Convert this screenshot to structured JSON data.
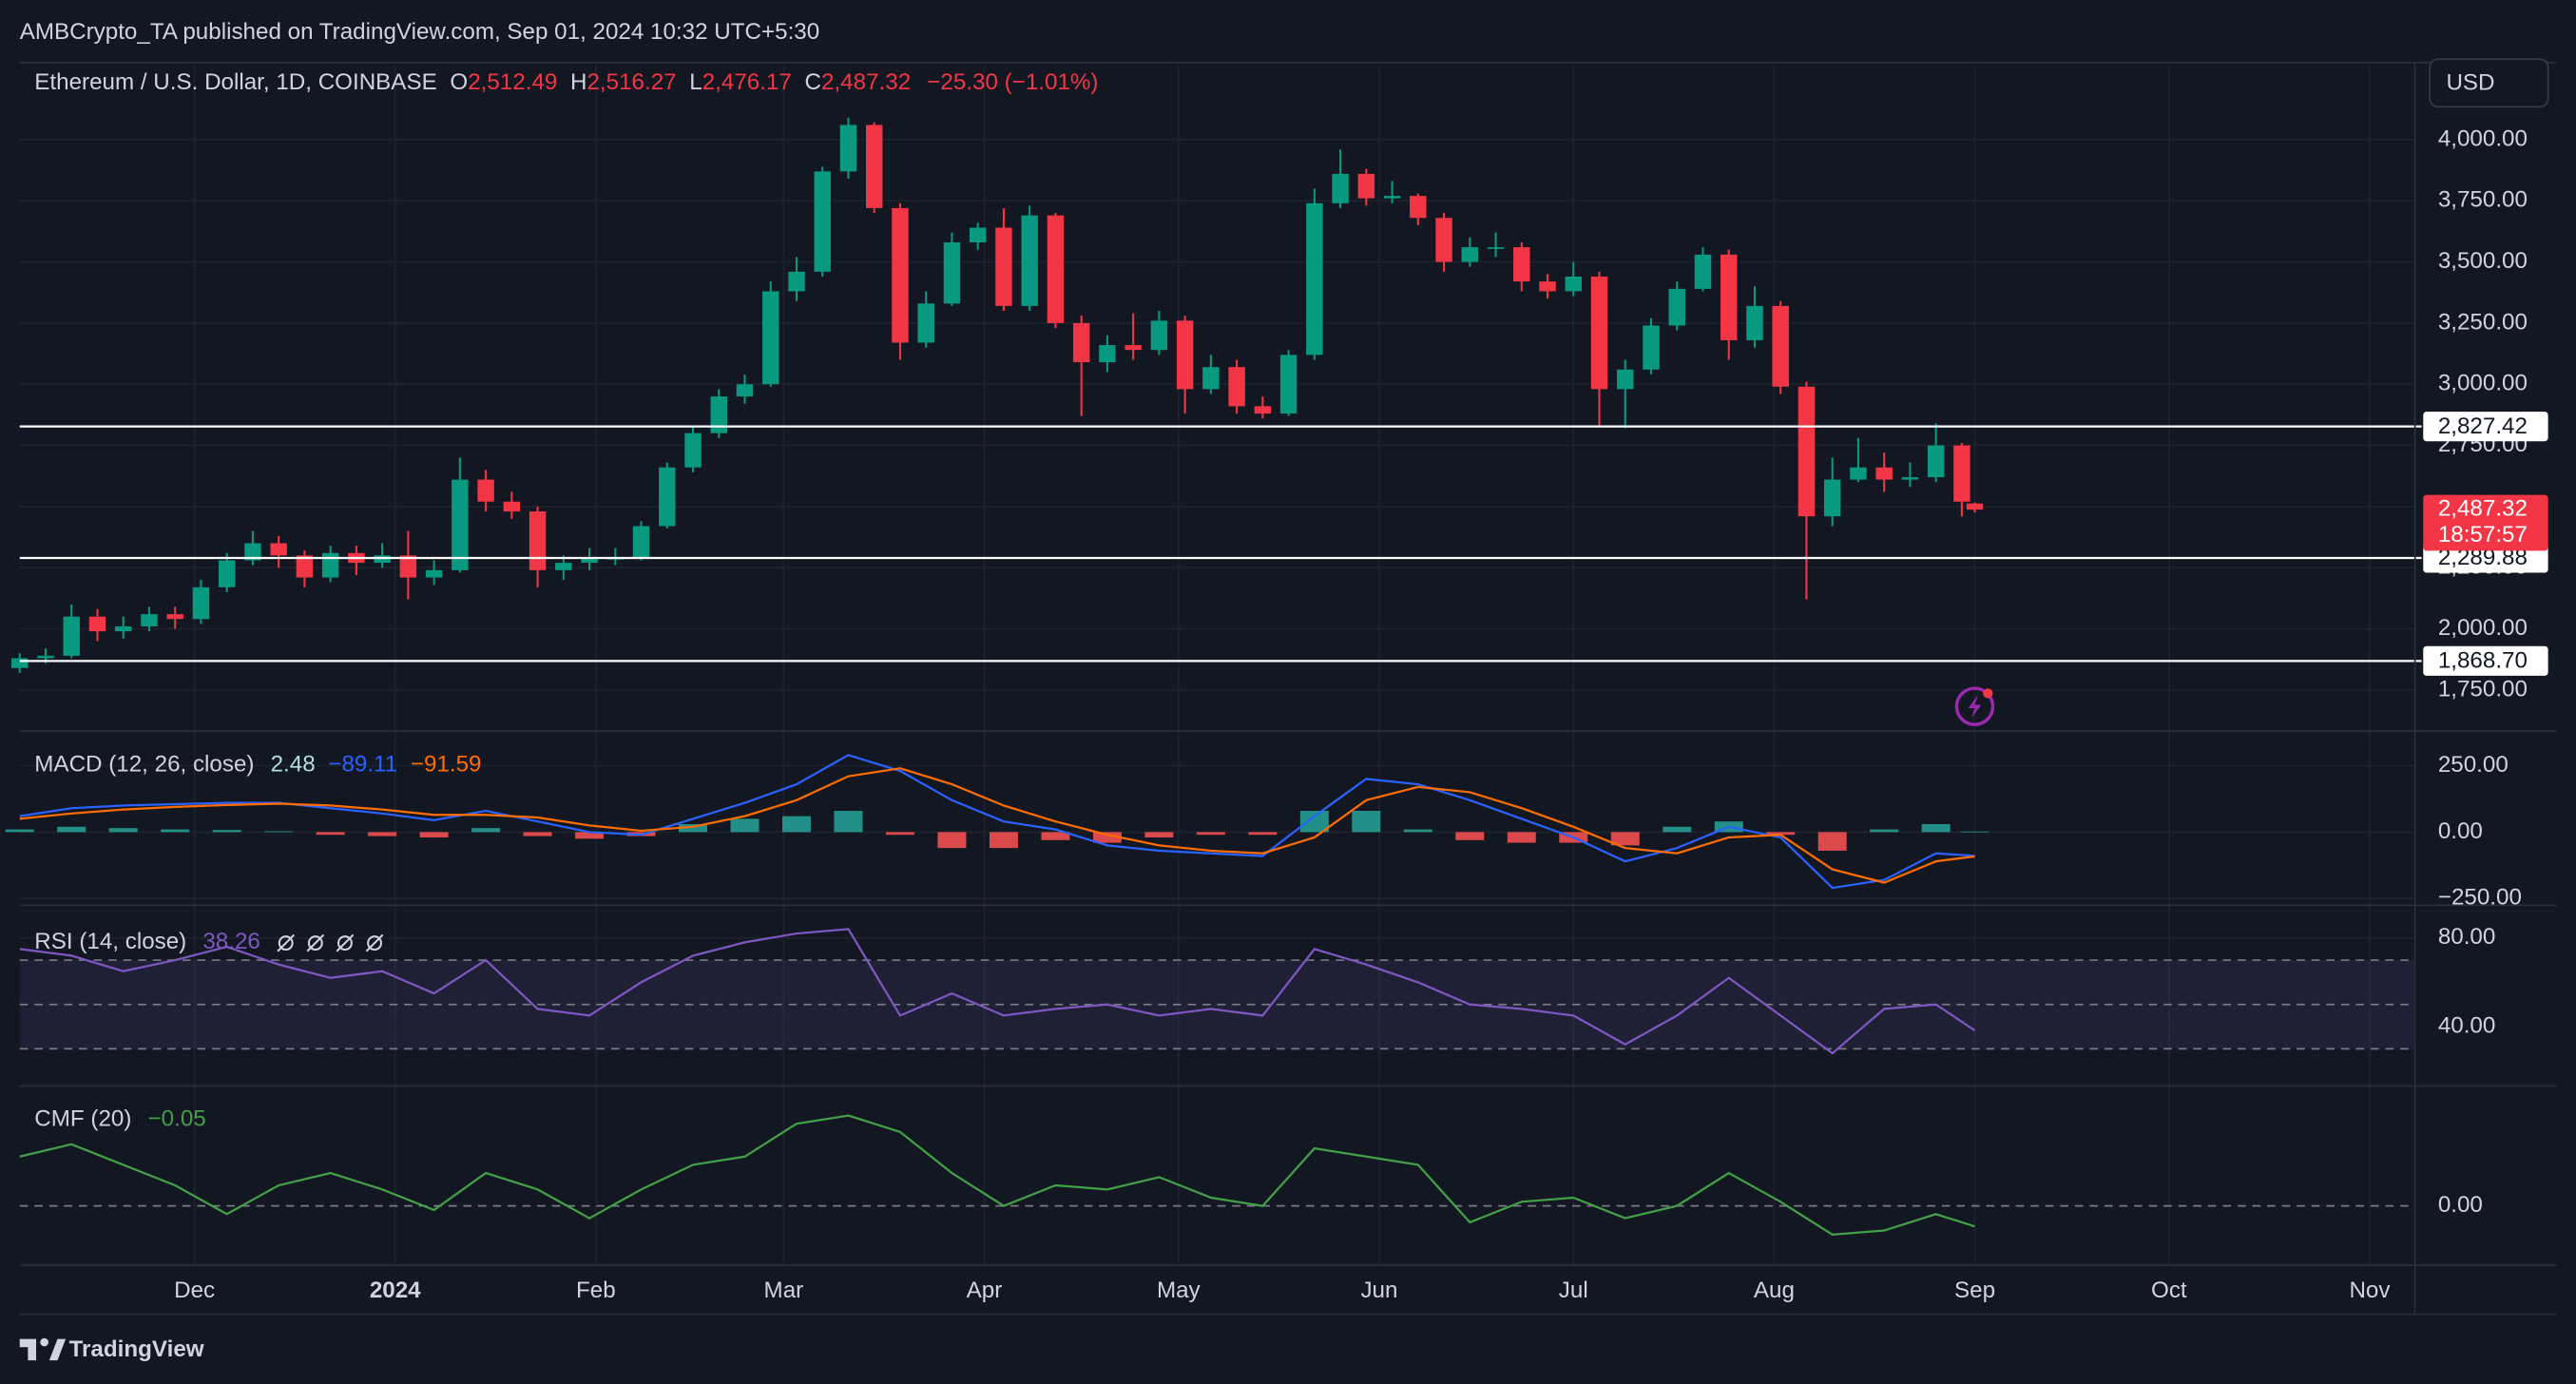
{
  "header": {
    "text": "AMBCrypto_TA published on TradingView.com, Sep 01, 2024 10:32 UTC+5:30",
    "currency": "USD"
  },
  "footer": {
    "brand": "TradingView"
  },
  "chart_data": [
    {
      "type": "candlestick",
      "legend": {
        "symbol": "Ethereum / U.S. Dollar, 1D, COINBASE",
        "items": [
          {
            "key": "O",
            "label": "2,512.49"
          },
          {
            "key": "H",
            "label": "2,516.27"
          },
          {
            "key": "L",
            "label": "2,476.17"
          },
          {
            "key": "C",
            "label": "2,487.32"
          }
        ],
        "change": "−25.30 (−1.01%)"
      },
      "countdown": "18:57:57",
      "up_color": "#089981",
      "down_color": "#f23645",
      "xlim": [
        0,
        370
      ],
      "xticks": [
        {
          "value": 27,
          "label": "Dec"
        },
        {
          "value": 58,
          "label": "2024"
        },
        {
          "value": 89,
          "label": "Feb"
        },
        {
          "value": 118,
          "label": "Mar"
        },
        {
          "value": 149,
          "label": "Apr"
        },
        {
          "value": 179,
          "label": "May"
        },
        {
          "value": 210,
          "label": "Jun"
        },
        {
          "value": 240,
          "label": "Jul"
        },
        {
          "value": 271,
          "label": "Aug"
        },
        {
          "value": 302,
          "label": "Sep"
        },
        {
          "value": 332,
          "label": "Oct"
        },
        {
          "value": 363,
          "label": "Nov"
        }
      ],
      "ylim": [
        1582,
        4302
      ],
      "yticks": [
        {
          "value": 1750,
          "label": "1,750.00"
        },
        {
          "value": 2000,
          "label": "2,000.00"
        },
        {
          "value": 2250,
          "label": "2,250.00"
        },
        {
          "value": 2500,
          "label": "2,500.00"
        },
        {
          "value": 2750,
          "label": "2,750.00"
        },
        {
          "value": 3000,
          "label": "3,000.00"
        },
        {
          "value": 3250,
          "label": "3,250.00"
        },
        {
          "value": 3500,
          "label": "3,500.00"
        },
        {
          "value": 3750,
          "label": "3,750.00"
        },
        {
          "value": 4000,
          "label": "4,000.00"
        }
      ],
      "grid": true,
      "levels": [
        {
          "value": 2827.42,
          "label": "2,827.42"
        },
        {
          "value": 2289.88,
          "label": "2,289.88"
        },
        {
          "value": 1868.7,
          "label": "1,868.70"
        }
      ],
      "x": [
        0,
        4,
        8,
        12,
        16,
        20,
        24,
        28,
        32,
        36,
        40,
        44,
        48,
        52,
        56,
        60,
        64,
        68,
        72,
        76,
        80,
        84,
        88,
        92,
        96,
        100,
        104,
        108,
        112,
        116,
        120,
        124,
        128,
        132,
        136,
        140,
        144,
        148,
        152,
        156,
        160,
        164,
        168,
        172,
        176,
        180,
        184,
        188,
        192,
        196,
        200,
        204,
        208,
        212,
        216,
        220,
        224,
        228,
        232,
        236,
        240,
        244,
        248,
        252,
        256,
        260,
        264,
        268,
        272,
        276,
        280,
        284,
        288,
        292,
        296,
        300,
        302
      ],
      "open": [
        1840,
        1880,
        1890,
        2050,
        1990,
        2010,
        2060,
        2040,
        2170,
        2280,
        2350,
        2300,
        2210,
        2310,
        2270,
        2300,
        2210,
        2240,
        2610,
        2520,
        2480,
        2240,
        2270,
        2290,
        2290,
        2420,
        2660,
        2800,
        2950,
        3000,
        3380,
        3460,
        3870,
        4060,
        3720,
        3170,
        3330,
        3580,
        3640,
        3320,
        3690,
        3250,
        3090,
        3160,
        3140,
        3260,
        2980,
        3070,
        2910,
        2880,
        3120,
        3740,
        3860,
        3760,
        3770,
        3680,
        3500,
        3560,
        3560,
        3420,
        3380,
        3440,
        2980,
        3060,
        3240,
        3390,
        3530,
        3180,
        3320,
        2990,
        2460,
        2610,
        2660,
        2610,
        2620,
        2750,
        2512.49
      ],
      "high": [
        1900,
        1920,
        2100,
        2080,
        2050,
        2090,
        2090,
        2200,
        2310,
        2400,
        2380,
        2320,
        2340,
        2340,
        2350,
        2400,
        2280,
        2700,
        2650,
        2560,
        2500,
        2300,
        2330,
        2330,
        2440,
        2680,
        2830,
        2980,
        3040,
        3420,
        3520,
        3890,
        4090,
        4070,
        3740,
        3380,
        3620,
        3660,
        3720,
        3730,
        3700,
        3280,
        3200,
        3290,
        3300,
        3280,
        3120,
        3100,
        2950,
        3140,
        3800,
        3960,
        3880,
        3830,
        3780,
        3700,
        3600,
        3620,
        3580,
        3450,
        3500,
        3460,
        3100,
        3270,
        3420,
        3560,
        3550,
        3400,
        3340,
        3010,
        2700,
        2780,
        2720,
        2680,
        2840,
        2760,
        2516.27
      ],
      "low": [
        1820,
        1860,
        1880,
        1950,
        1960,
        1990,
        2000,
        2020,
        2150,
        2260,
        2250,
        2170,
        2190,
        2220,
        2250,
        2120,
        2180,
        2230,
        2480,
        2450,
        2170,
        2200,
        2240,
        2260,
        2280,
        2410,
        2640,
        2780,
        2920,
        2990,
        3340,
        3440,
        3840,
        3700,
        3100,
        3150,
        3320,
        3550,
        3300,
        3300,
        3230,
        2870,
        3050,
        3100,
        3120,
        2880,
        2960,
        2880,
        2860,
        2870,
        3100,
        3720,
        3730,
        3740,
        3650,
        3460,
        3480,
        3520,
        3380,
        3350,
        3360,
        2830,
        2820,
        3040,
        3220,
        3380,
        3100,
        3150,
        2960,
        2120,
        2420,
        2600,
        2560,
        2580,
        2600,
        2460,
        2476.17
      ],
      "close": [
        1880,
        1890,
        2050,
        1990,
        2010,
        2060,
        2040,
        2170,
        2280,
        2350,
        2300,
        2210,
        2310,
        2270,
        2300,
        2210,
        2240,
        2610,
        2520,
        2480,
        2240,
        2270,
        2290,
        2290,
        2420,
        2660,
        2800,
        2950,
        3000,
        3380,
        3460,
        3870,
        4060,
        3720,
        3170,
        3330,
        3580,
        3640,
        3320,
        3690,
        3250,
        3090,
        3160,
        3140,
        3260,
        2980,
        3070,
        2910,
        2880,
        3120,
        3740,
        3860,
        3760,
        3770,
        3680,
        3500,
        3560,
        3560,
        3420,
        3380,
        3440,
        2980,
        3060,
        3240,
        3390,
        3530,
        3180,
        3320,
        2990,
        2460,
        2610,
        2660,
        2610,
        2620,
        2750,
        2520,
        2487.32
      ]
    },
    {
      "type": "macd",
      "title": "MACD (12, 26, close)",
      "ylim": [
        -269,
        380
      ],
      "yticks": [
        {
          "value": 250,
          "label": "250.00"
        },
        {
          "value": 0,
          "label": "0.00"
        },
        {
          "value": -250,
          "label": "−250.00"
        }
      ],
      "grid": true,
      "x": [
        0,
        8,
        16,
        24,
        32,
        40,
        48,
        56,
        64,
        72,
        80,
        88,
        96,
        104,
        112,
        120,
        128,
        136,
        144,
        152,
        160,
        168,
        176,
        184,
        192,
        200,
        208,
        216,
        224,
        232,
        240,
        248,
        256,
        264,
        272,
        280,
        288,
        296,
        302
      ],
      "histogram": {
        "up_color": "#26a69a",
        "down_color": "#ff5252",
        "values": [
          10,
          20,
          15,
          10,
          8,
          3,
          -10,
          -15,
          -20,
          15,
          -15,
          -25,
          -15,
          30,
          50,
          60,
          80,
          -10,
          -60,
          -60,
          -30,
          -40,
          -20,
          -10,
          -10,
          80,
          80,
          10,
          -30,
          -40,
          -40,
          -50,
          20,
          40,
          -10,
          -70,
          10,
          30,
          2.48
        ]
      },
      "series": [
        {
          "color": "#2962ff",
          "value_label": "−89.11",
          "values": [
            60,
            90,
            100,
            105,
            110,
            110,
            90,
            70,
            45,
            80,
            40,
            0,
            -10,
            50,
            110,
            180,
            290,
            230,
            120,
            40,
            10,
            -50,
            -70,
            -80,
            -90,
            60,
            200,
            180,
            120,
            50,
            -20,
            -110,
            -60,
            20,
            -20,
            -210,
            -180,
            -80,
            -89.11
          ]
        },
        {
          "color": "#ff6d00",
          "value_label": "−91.59",
          "values": [
            50,
            70,
            85,
            95,
            102,
            107,
            100,
            85,
            65,
            65,
            55,
            25,
            5,
            20,
            60,
            120,
            210,
            240,
            180,
            100,
            40,
            -10,
            -50,
            -70,
            -80,
            -20,
            120,
            170,
            150,
            90,
            20,
            -60,
            -80,
            -20,
            -10,
            -140,
            -190,
            -110,
            -91.59
          ]
        }
      ]
    },
    {
      "type": "line",
      "title": "RSI (14, close)",
      "ylim": [
        14,
        94
      ],
      "yticks": [
        {
          "value": 80,
          "label": "80.00"
        },
        {
          "value": 40,
          "label": "40.00"
        }
      ],
      "grid": true,
      "bands": [
        70,
        50,
        30
      ],
      "band_color": "#7e57c2",
      "x": [
        0,
        8,
        16,
        24,
        32,
        40,
        48,
        56,
        64,
        72,
        80,
        88,
        96,
        104,
        112,
        120,
        128,
        136,
        144,
        152,
        160,
        168,
        176,
        184,
        192,
        200,
        208,
        216,
        224,
        232,
        240,
        248,
        256,
        264,
        272,
        280,
        288,
        296,
        302
      ],
      "series": [
        {
          "color": "#7e57c2",
          "values": [
            75,
            72,
            65,
            70,
            76,
            68,
            62,
            65,
            55,
            70,
            48,
            45,
            60,
            72,
            78,
            82,
            84,
            45,
            55,
            45,
            48,
            50,
            45,
            48,
            45,
            75,
            68,
            60,
            50,
            48,
            45,
            32,
            45,
            62,
            45,
            28,
            48,
            50,
            38.26
          ]
        }
      ]
    },
    {
      "type": "line",
      "title": "CMF (20)",
      "ylim": [
        -0.144,
        0.288
      ],
      "yticks": [
        {
          "value": 0,
          "label": "0.00"
        }
      ],
      "grid": "dashed",
      "x": [
        0,
        8,
        16,
        24,
        32,
        40,
        48,
        56,
        64,
        72,
        80,
        88,
        96,
        104,
        112,
        120,
        128,
        136,
        144,
        152,
        160,
        168,
        176,
        184,
        192,
        200,
        208,
        216,
        224,
        232,
        240,
        248,
        256,
        264,
        272,
        280,
        288,
        296,
        302
      ],
      "series": [
        {
          "color": "#43a047",
          "value_label": "−0.05",
          "values": [
            0.12,
            0.15,
            0.1,
            0.05,
            -0.02,
            0.05,
            0.08,
            0.04,
            -0.01,
            0.08,
            0.04,
            -0.03,
            0.04,
            0.1,
            0.12,
            0.2,
            0.22,
            0.18,
            0.08,
            0.0,
            0.05,
            0.04,
            0.07,
            0.02,
            0.0,
            0.14,
            0.12,
            0.1,
            -0.04,
            0.01,
            0.02,
            -0.03,
            0.0,
            0.08,
            0.01,
            -0.07,
            -0.06,
            -0.02,
            -0.05
          ]
        }
      ]
    }
  ]
}
